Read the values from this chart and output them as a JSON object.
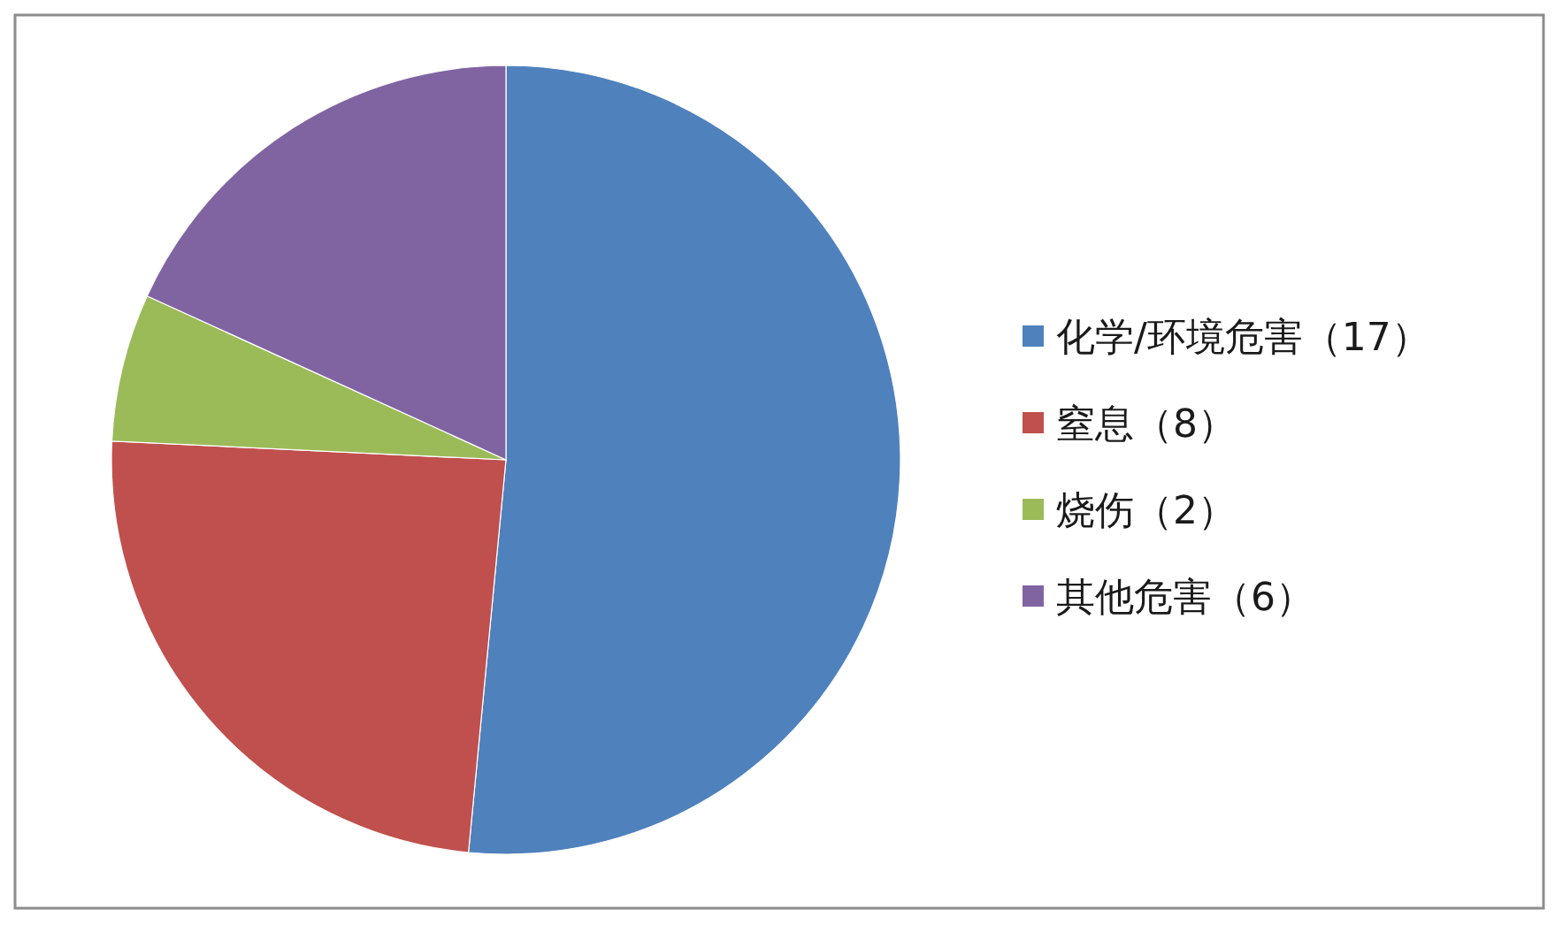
{
  "chart_data": {
    "type": "pie",
    "categories": [
      "化学/环境危害（17）",
      "窒息（8）",
      "烧伤（2）",
      "其他危害（6）"
    ],
    "values": [
      17,
      8,
      2,
      6
    ],
    "colors": [
      "#4f81bd",
      "#c0504d",
      "#9bbb59",
      "#8064a2"
    ],
    "legend": "right"
  }
}
